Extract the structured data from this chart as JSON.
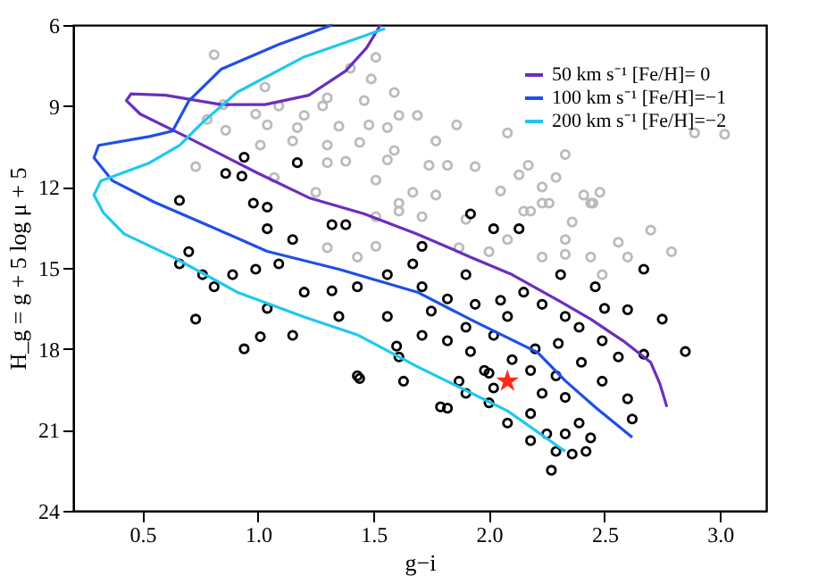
{
  "chart_data": {
    "type": "scatter",
    "xlabel": "g−i",
    "ylabel": "H_g = g + 5 log μ + 5",
    "xlim": [
      0.2,
      3.2
    ],
    "ylim": [
      24,
      6
    ],
    "xticks": [
      {
        "value": 0.5,
        "label": "0.5"
      },
      {
        "value": 1.0,
        "label": "1.0"
      },
      {
        "value": 1.5,
        "label": "1.5"
      },
      {
        "value": 2.0,
        "label": "2.0"
      },
      {
        "value": 2.5,
        "label": "2.5"
      },
      {
        "value": 3.0,
        "label": "3.0"
      }
    ],
    "yticks": [
      6,
      9,
      12,
      15,
      18,
      21,
      24
    ],
    "grid": false,
    "legend": "top right",
    "series": [
      {
        "type": "scatter",
        "marker": "circle",
        "color": "#bbbbbb",
        "x": [
          0.81,
          1.4,
          1.51,
          1.49,
          1.03,
          1.3,
          1.46,
          1.59,
          0.85,
          0.99,
          1.09,
          1.2,
          1.28,
          0.78,
          0.86,
          1.04,
          1.17,
          1.35,
          1.48,
          1.56,
          1.61,
          1.69,
          1.86,
          2.08,
          2.89,
          3.02,
          1.01,
          1.15,
          1.3,
          1.44,
          1.59,
          1.77,
          2.33,
          1.56,
          1.74,
          1.82,
          1.94,
          2.17,
          0.73,
          1.07,
          1.3,
          1.38,
          2.13,
          2.29,
          2.05,
          2.23,
          1.67,
          1.77,
          1.51,
          2.41,
          2.48,
          2.45,
          2.15,
          2.23,
          1.61,
          1.25,
          1.51,
          1.61,
          1.9,
          2.18,
          2.26,
          2.44,
          2.36,
          2.56,
          2.79,
          2.33,
          2.23,
          2.33,
          1.43,
          1.51,
          1.3,
          2.49,
          2.44,
          1.71,
          2.6,
          2.0,
          2.08,
          1.87,
          2.7
        ],
        "values": [
          7.1,
          7.6,
          7.2,
          8.0,
          8.3,
          8.7,
          8.8,
          8.5,
          8.95,
          9.3,
          9.0,
          9.35,
          9.0,
          9.5,
          9.9,
          9.7,
          9.8,
          9.75,
          9.7,
          9.8,
          9.35,
          9.35,
          9.7,
          10.0,
          10.0,
          10.05,
          10.45,
          10.3,
          10.45,
          10.35,
          10.65,
          10.3,
          10.8,
          11.0,
          11.2,
          11.2,
          11.25,
          11.2,
          11.25,
          11.65,
          11.1,
          11.05,
          11.55,
          11.65,
          12.15,
          12.0,
          12.2,
          12.3,
          11.75,
          12.3,
          12.2,
          12.6,
          12.9,
          12.6,
          12.6,
          12.2,
          13.1,
          12.9,
          13.2,
          12.9,
          12.6,
          12.6,
          13.3,
          14.05,
          14.4,
          13.95,
          14.6,
          14.5,
          14.6,
          14.2,
          14.25,
          15.25,
          14.6,
          13.1,
          14.6,
          14.4,
          13.95,
          14.25,
          13.6
        ]
      },
      {
        "type": "scatter",
        "marker": "circle",
        "color": "#000000",
        "x": [
          0.94,
          1.17,
          0.86,
          0.93,
          0.66,
          0.98,
          1.04,
          1.92,
          0.66,
          0.7,
          0.76,
          0.81,
          0.73,
          0.89,
          0.99,
          1.09,
          1.15,
          1.04,
          1.32,
          1.38,
          0.94,
          1.01,
          1.15,
          1.2,
          1.04,
          1.32,
          1.43,
          1.56,
          1.67,
          1.71,
          2.02,
          2.13,
          1.43,
          1.61,
          1.71,
          1.82,
          1.92,
          2.02,
          2.08,
          1.94,
          1.82,
          1.71,
          1.9,
          2.15,
          2.23,
          2.33,
          2.39,
          2.49,
          2.56,
          2.67,
          2.75,
          2.85,
          2.67,
          2.46,
          2.31,
          2.6,
          2.18,
          2.29,
          1.98,
          1.87,
          1.56,
          1.35,
          1.44,
          1.63,
          1.79,
          1.82,
          1.9,
          2.0,
          2.08,
          2.18,
          2.25,
          2.18,
          2.33,
          2.39,
          2.44,
          2.42,
          2.36,
          2.27,
          2.29,
          2.33,
          2.49,
          2.6,
          2.62,
          2.02,
          2.23,
          2.1,
          2.2,
          2.0,
          1.9,
          2.4,
          2.3,
          1.6,
          2.05,
          2.5,
          1.75
        ],
        "values": [
          10.9,
          11.1,
          11.5,
          11.6,
          12.5,
          12.6,
          12.75,
          13.0,
          14.85,
          14.4,
          15.25,
          15.7,
          16.9,
          15.25,
          15.05,
          14.85,
          13.95,
          13.55,
          13.4,
          13.4,
          18.0,
          17.55,
          17.5,
          15.9,
          16.5,
          15.85,
          15.7,
          15.25,
          14.85,
          14.2,
          13.55,
          13.55,
          19.0,
          18.3,
          17.5,
          17.7,
          18.1,
          17.5,
          16.8,
          16.35,
          16.15,
          15.7,
          15.25,
          15.9,
          16.35,
          16.8,
          17.2,
          17.7,
          18.3,
          18.2,
          16.9,
          18.1,
          15.05,
          15.7,
          15.25,
          16.55,
          18.8,
          19.0,
          18.8,
          19.2,
          16.8,
          16.8,
          19.1,
          19.2,
          20.15,
          20.2,
          19.65,
          20.0,
          20.75,
          20.4,
          21.15,
          21.4,
          21.15,
          20.75,
          21.3,
          21.8,
          21.9,
          22.5,
          21.8,
          19.8,
          19.2,
          19.85,
          20.6,
          19.45,
          19.65,
          18.4,
          18.0,
          18.9,
          17.2,
          18.5,
          17.8,
          17.9,
          16.2,
          16.5,
          16.6
        ]
      },
      {
        "type": "line",
        "name": "50 km s⁻¹ [Fe/H]= 0",
        "color": "#6a2ec0",
        "x": [
          1.53,
          1.47,
          1.38,
          1.22,
          1.03,
          0.84,
          0.6,
          0.45,
          0.43,
          0.49,
          0.68,
          0.99,
          1.22,
          1.46,
          1.69,
          1.92,
          2.1,
          2.31,
          2.44,
          2.58,
          2.7,
          2.74,
          2.77
        ],
        "values": [
          6.0,
          6.85,
          7.7,
          8.6,
          8.95,
          8.95,
          8.6,
          8.55,
          8.8,
          9.3,
          10.1,
          11.45,
          12.4,
          13.0,
          13.75,
          14.6,
          15.25,
          16.25,
          16.9,
          17.7,
          18.5,
          19.3,
          20.15
        ]
      },
      {
        "type": "line",
        "name": "100 km s⁻¹ [Fe/H]=−1",
        "color": "#1f4fe6",
        "x": [
          1.32,
          1.09,
          0.84,
          0.7,
          0.63,
          0.53,
          0.31,
          0.29,
          0.37,
          0.55,
          0.78,
          1.04,
          1.35,
          1.69,
          1.94,
          2.21,
          2.33,
          2.46,
          2.62
        ],
        "values": [
          6.0,
          6.72,
          7.64,
          8.82,
          9.93,
          10.13,
          10.46,
          10.92,
          11.77,
          12.56,
          13.41,
          14.39,
          15.05,
          15.9,
          17.0,
          18.13,
          19.18,
          20.16,
          21.28
        ]
      },
      {
        "type": "line",
        "name": "200 km s⁻¹ [Fe/H]=−2",
        "color": "#1ec8f0",
        "x": [
          1.55,
          1.2,
          0.91,
          0.76,
          0.66,
          0.53,
          0.32,
          0.29,
          0.33,
          0.42,
          0.63,
          0.91,
          1.2,
          1.43,
          1.69,
          2.08,
          2.33
        ],
        "values": [
          6.13,
          7.18,
          8.49,
          9.61,
          10.46,
          11.11,
          11.77,
          12.3,
          12.95,
          13.74,
          14.59,
          15.9,
          16.82,
          17.48,
          18.66,
          20.3,
          21.8
        ]
      },
      {
        "type": "scatter",
        "marker": "star",
        "color": "#ff2a1a",
        "x": [
          2.08
        ],
        "values": [
          19.2
        ]
      }
    ]
  }
}
